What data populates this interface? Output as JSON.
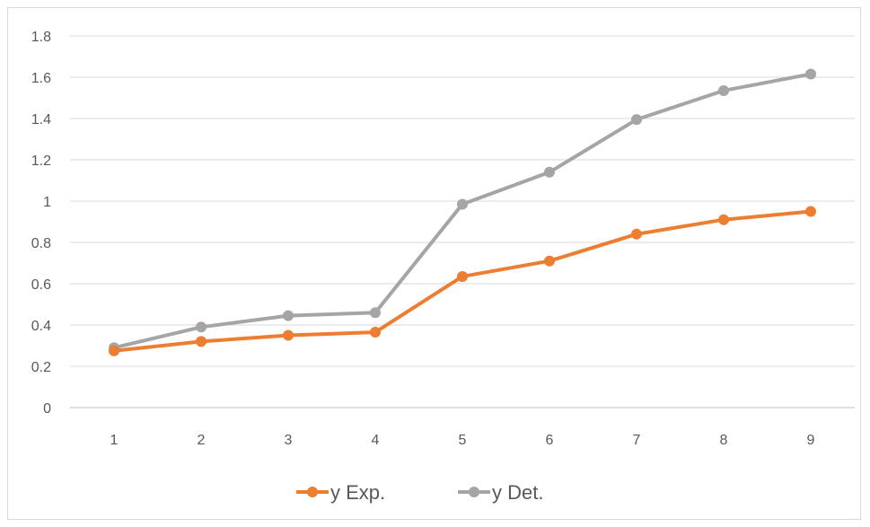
{
  "chart_data": {
    "type": "line",
    "title": "",
    "xlabel": "",
    "ylabel": "",
    "x": [
      1,
      2,
      3,
      4,
      5,
      6,
      7,
      8,
      9
    ],
    "x_tick_labels": [
      "1",
      "2",
      "3",
      "4",
      "5",
      "6",
      "7",
      "8",
      "9"
    ],
    "ylim": [
      0,
      1.8
    ],
    "y_ticks": [
      0,
      0.2,
      0.4,
      0.6,
      0.8,
      1,
      1.2,
      1.4,
      1.6,
      1.8
    ],
    "y_tick_labels": [
      "0",
      "0.2",
      "0.4",
      "0.6",
      "0.8",
      "1",
      "1.2",
      "1.4",
      "1.6",
      "1.8"
    ],
    "grid": "horizontal",
    "legend_position": "bottom",
    "series": [
      {
        "name": "y Exp.",
        "color": "#ed7d31",
        "marker": "circle",
        "values": [
          0.275,
          0.32,
          0.35,
          0.365,
          0.635,
          0.71,
          0.84,
          0.91,
          0.95
        ]
      },
      {
        "name": "y Det.",
        "color": "#a5a5a5",
        "marker": "circle",
        "values": [
          0.29,
          0.39,
          0.445,
          0.46,
          0.985,
          1.14,
          1.395,
          1.535,
          1.615
        ]
      }
    ]
  }
}
